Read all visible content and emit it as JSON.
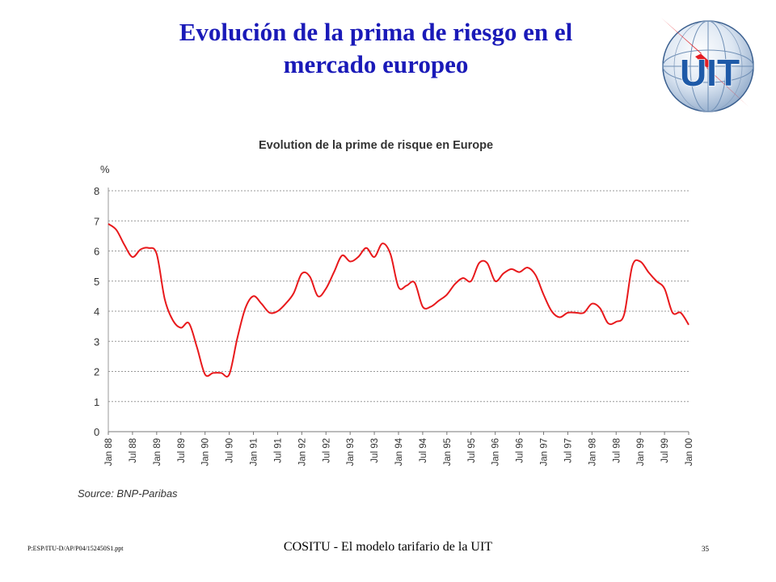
{
  "slide": {
    "title_line1": "Evolución de la prima de riesgo en el",
    "title_line2": "mercado europeo",
    "footer_left": "P:ESP/ITU-D/AP/P04/152450S1.ppt",
    "footer_center": "COSITU - El modelo tarifario de la UIT",
    "footer_right": "35",
    "logo_text": "UIT"
  },
  "colors": {
    "title": "#1a1ab8",
    "series": "#e8191c",
    "grid": "#999999",
    "logo_blue": "#1e5aa8",
    "logo_red": "#e31e24"
  },
  "chart_data": {
    "type": "line",
    "title": "Evolution de la prime de risque en Europe",
    "ylabel": "%",
    "source": "Source: BNP-Paribas",
    "ylim": [
      0,
      8
    ],
    "yticks": [
      "0",
      "1",
      "2",
      "3",
      "4",
      "5",
      "6",
      "7",
      "8"
    ],
    "xticks": [
      "Jan 88",
      "Jul 88",
      "Jan 89",
      "Jul 89",
      "Jan 90",
      "Jul 90",
      "Jan 91",
      "Jul 91",
      "Jan 92",
      "Jul 92",
      "Jan 93",
      "Jul 93",
      "Jan 94",
      "Jul 94",
      "Jan 95",
      "Jul 95",
      "Jan 96",
      "Jul 96",
      "Jan 97",
      "Jul 97",
      "Jan 98",
      "Jul 98",
      "Jan 99",
      "Jul 99",
      "Jan 00"
    ],
    "grid": "horizontal-dashed",
    "series": [
      {
        "x": [
          "Jan 88",
          "Mar 88",
          "May 88",
          "Jul 88",
          "Sep 88",
          "Nov 88",
          "Jan 89",
          "Mar 89",
          "May 89",
          "Jul 89",
          "Sep 89",
          "Nov 89",
          "Jan 90",
          "Mar 90",
          "May 90",
          "Jul 90",
          "Sep 90",
          "Nov 90",
          "Jan 91",
          "Mar 91",
          "May 91",
          "Jul 91",
          "Sep 91",
          "Nov 91",
          "Jan 92",
          "Mar 92",
          "May 92",
          "Jul 92",
          "Sep 92",
          "Nov 92",
          "Jan 93",
          "Mar 93",
          "May 93",
          "Jul 93",
          "Sep 93",
          "Nov 93",
          "Jan 94",
          "Mar 94",
          "May 94",
          "Jul 94",
          "Sep 94",
          "Nov 94",
          "Jan 95",
          "Mar 95",
          "May 95",
          "Jul 95",
          "Sep 95",
          "Nov 95",
          "Jan 96",
          "Mar 96",
          "May 96",
          "Jul 96",
          "Sep 96",
          "Nov 96",
          "Jan 97",
          "Mar 97",
          "May 97",
          "Jul 97",
          "Sep 97",
          "Nov 97",
          "Jan 98",
          "Mar 98",
          "May 98",
          "Jul 98",
          "Sep 98",
          "Nov 98",
          "Jan 99",
          "Mar 99",
          "May 99",
          "Jul 99",
          "Sep 99",
          "Nov 99",
          "Jan 00"
        ],
        "values": [
          6.9,
          6.7,
          6.2,
          5.8,
          6.05,
          6.1,
          5.9,
          4.4,
          3.7,
          3.45,
          3.6,
          2.8,
          1.9,
          1.95,
          1.95,
          1.9,
          3.1,
          4.1,
          4.5,
          4.25,
          3.95,
          4.0,
          4.25,
          4.6,
          5.25,
          5.15,
          4.5,
          4.75,
          5.3,
          5.85,
          5.65,
          5.8,
          6.1,
          5.8,
          6.25,
          5.9,
          4.8,
          4.85,
          4.95,
          4.15,
          4.15,
          4.35,
          4.55,
          4.9,
          5.1,
          5.0,
          5.6,
          5.6,
          5.0,
          5.25,
          5.4,
          5.3,
          5.45,
          5.2,
          4.55,
          4.0,
          3.8,
          3.95,
          3.95,
          3.95,
          4.25,
          4.1,
          3.6,
          3.65,
          3.9,
          5.5,
          5.65,
          5.3,
          5.0,
          4.75,
          3.95,
          3.95,
          3.55
        ]
      }
    ]
  }
}
